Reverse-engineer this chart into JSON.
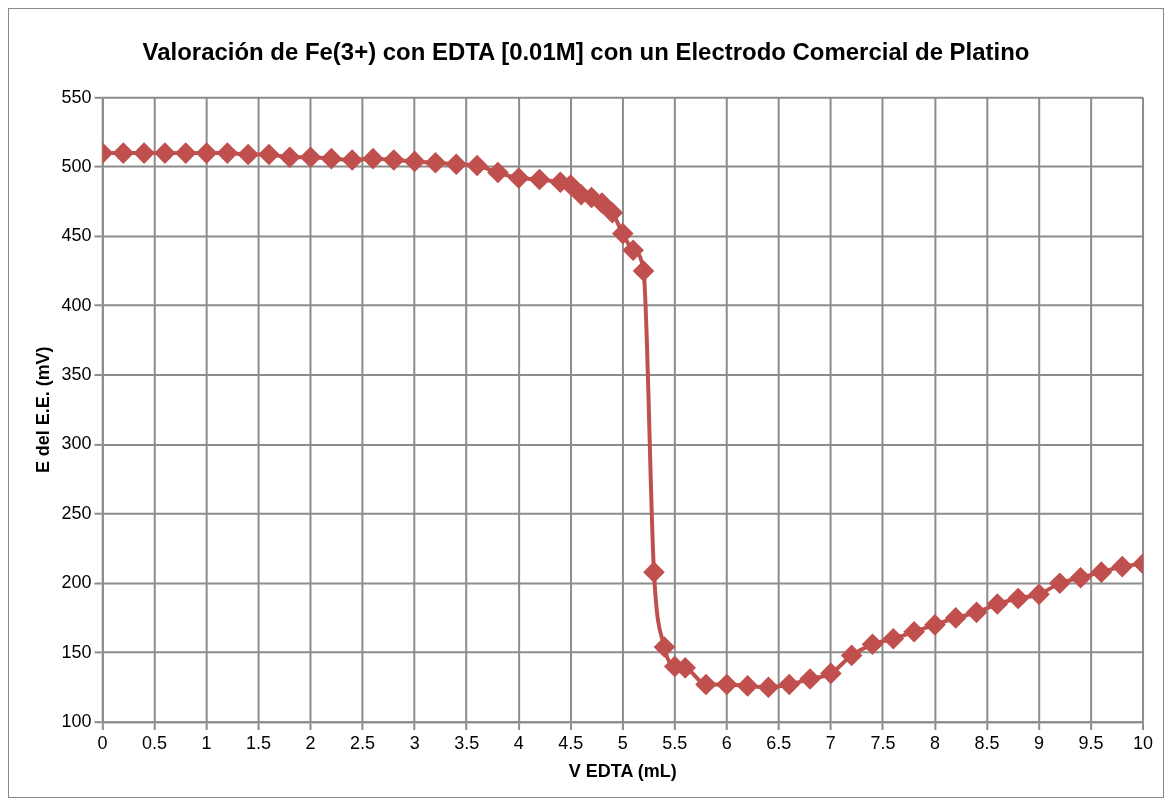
{
  "chart_data": {
    "type": "line",
    "title": "Valoración de Fe(3+) con EDTA [0.01M] con un Electrodo Comercial de Platino",
    "xlabel": "V EDTA (mL)",
    "ylabel": "E del E.E. (mV)",
    "x": [
      0,
      0.2,
      0.4,
      0.6,
      0.8,
      1.0,
      1.2,
      1.4,
      1.6,
      1.8,
      2.0,
      2.2,
      2.4,
      2.6,
      2.8,
      3.0,
      3.2,
      3.4,
      3.6,
      3.8,
      4.0,
      4.2,
      4.4,
      4.5,
      4.6,
      4.7,
      4.8,
      4.9,
      5.0,
      5.1,
      5.2,
      5.3,
      5.4,
      5.5,
      5.6,
      5.8,
      6.0,
      6.2,
      6.4,
      6.6,
      6.8,
      7.0,
      7.2,
      7.4,
      7.6,
      7.8,
      8.0,
      8.2,
      8.4,
      8.6,
      8.8,
      9.0,
      9.2,
      9.4,
      9.6,
      9.8,
      10.0
    ],
    "series": [
      {
        "color": "#c0504d",
        "values": [
          510,
          510,
          510,
          510,
          510,
          510,
          510,
          509,
          509,
          507,
          507,
          506,
          505,
          506,
          505,
          504,
          503,
          502,
          501,
          496,
          492,
          491,
          489,
          487,
          480,
          478,
          474,
          467,
          452,
          440,
          425,
          208,
          154,
          140,
          139,
          127,
          127,
          126,
          125,
          127,
          131,
          135,
          148,
          156,
          160,
          165,
          170,
          175,
          179,
          185,
          189,
          192,
          200,
          204,
          208,
          212,
          214
        ]
      }
    ],
    "xlim": [
      0,
      10
    ],
    "xticks": [
      0,
      0.5,
      1,
      1.5,
      2,
      2.5,
      3,
      3.5,
      4,
      4.5,
      5,
      5.5,
      6,
      6.5,
      7,
      7.5,
      8,
      8.5,
      9,
      9.5,
      10
    ],
    "ylim": [
      100,
      550
    ],
    "yticks": [
      100,
      150,
      200,
      250,
      300,
      350,
      400,
      450,
      500,
      550
    ],
    "grid": true,
    "legend": false,
    "marker": "diamond",
    "line_style": "solid"
  }
}
